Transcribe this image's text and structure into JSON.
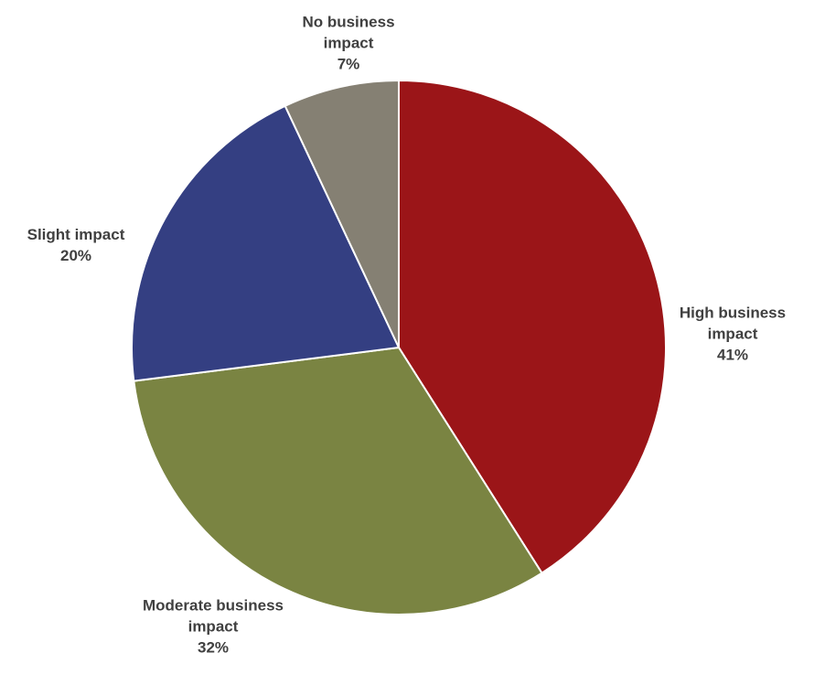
{
  "chart_data": {
    "type": "pie",
    "categories": [
      "High business impact",
      "Moderate business impact",
      "Slight impact",
      "No business impact"
    ],
    "values": [
      41,
      32,
      20,
      7
    ],
    "value_labels": [
      "41%",
      "32%",
      "20%",
      "7%"
    ],
    "colors": [
      "#9b1518",
      "#7a8442",
      "#343f82",
      "#858073"
    ]
  }
}
